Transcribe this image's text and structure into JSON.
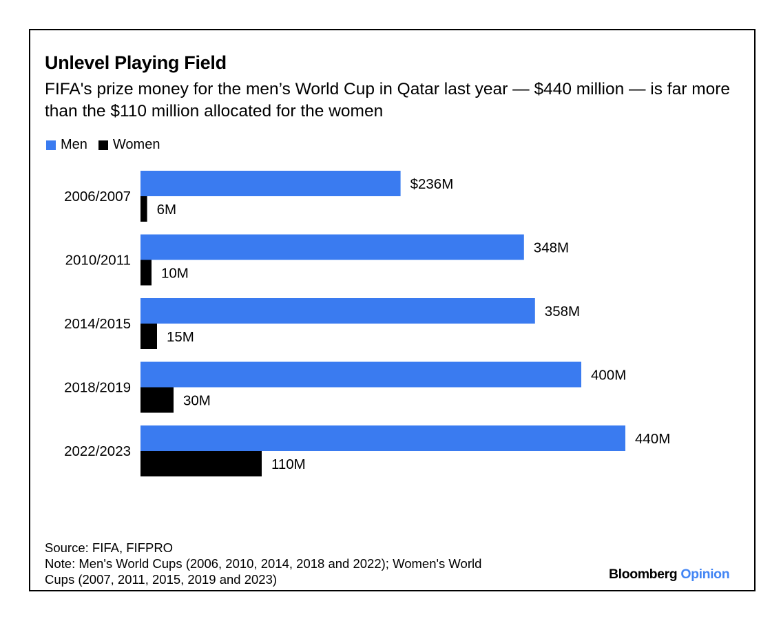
{
  "header": {
    "title": "Unlevel Playing Field",
    "subtitle": "FIFA's prize money for the men’s World Cup in Qatar last year — $440 million — is far more than the $110 million allocated for the women"
  },
  "legend": [
    {
      "name": "Men",
      "color": "#3a7bf0"
    },
    {
      "name": "Women",
      "color": "#000000"
    }
  ],
  "chart_data": {
    "type": "bar",
    "orientation": "horizontal",
    "categories": [
      "2006/2007",
      "2010/2011",
      "2014/2015",
      "2018/2019",
      "2022/2023"
    ],
    "series": [
      {
        "name": "Men",
        "color": "#3a7bf0",
        "values": [
          236,
          348,
          358,
          400,
          440
        ],
        "labels": [
          "$236M",
          "348M",
          "358M",
          "400M",
          "440M"
        ]
      },
      {
        "name": "Women",
        "color": "#000000",
        "values": [
          6,
          10,
          15,
          30,
          110
        ],
        "labels": [
          "6M",
          "10M",
          "15M",
          "30M",
          "110M"
        ]
      }
    ],
    "unit": "million USD",
    "xlim": [
      0,
      440
    ],
    "grid": false,
    "legend_position": "top-left"
  },
  "footer": {
    "source": "Source: FIFA, FIFPRO",
    "note_line1": "Note: Men's World Cups (2006, 2010, 2014, 2018 and 2022); Women's World",
    "note_line2": "Cups (2007, 2011, 2015, 2019 and 2023)",
    "brand_name": "Bloomberg",
    "brand_suffix": "Opinion"
  }
}
